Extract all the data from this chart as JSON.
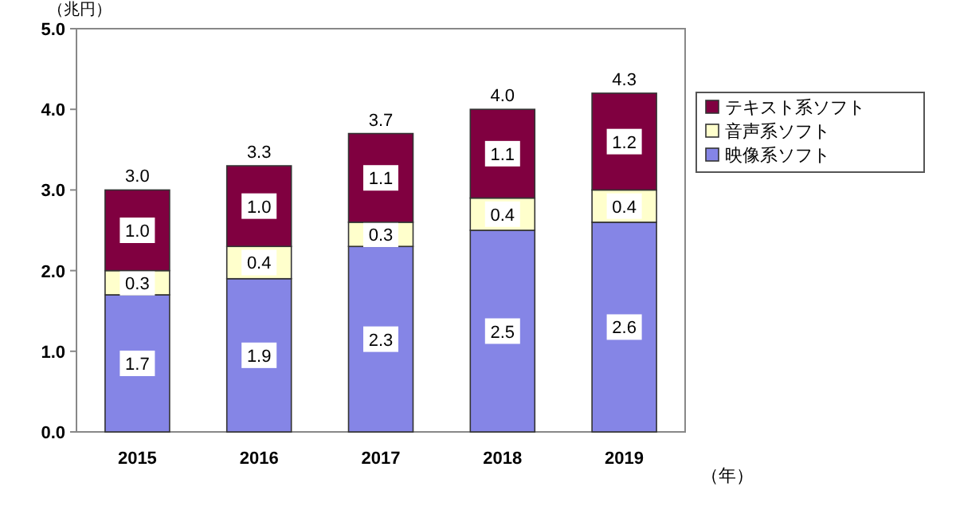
{
  "chart_data": {
    "type": "bar",
    "stacked": true,
    "ylabel": "（兆円）",
    "xlabel": "（年）",
    "categories": [
      "2015",
      "2016",
      "2017",
      "2018",
      "2019"
    ],
    "series": [
      {
        "name": "映像系ソフト",
        "color": "#8585e6",
        "values": [
          1.7,
          1.9,
          2.3,
          2.5,
          2.6
        ],
        "value_labels": [
          "1.7",
          "1.9",
          "2.3",
          "2.5",
          "2.6"
        ]
      },
      {
        "name": "音声系ソフト",
        "color": "#ffffcc",
        "values": [
          0.3,
          0.4,
          0.3,
          0.4,
          0.4
        ],
        "value_labels": [
          "0.3",
          "0.4",
          "0.3",
          "0.4",
          "0.4"
        ]
      },
      {
        "name": "テキスト系ソフト",
        "color": "#800040",
        "values": [
          1.0,
          1.0,
          1.1,
          1.1,
          1.2
        ],
        "value_labels": [
          "1.0",
          "1.0",
          "1.1",
          "1.1",
          "1.2"
        ]
      }
    ],
    "totals": [
      "3.0",
      "3.3",
      "3.7",
      "4.0",
      "4.3"
    ],
    "ylim": [
      0,
      5
    ],
    "yticks": [
      {
        "value": 0,
        "label": "0.0"
      },
      {
        "value": 1,
        "label": "1.0"
      },
      {
        "value": 2,
        "label": "2.0"
      },
      {
        "value": 3,
        "label": "3.0"
      },
      {
        "value": 4,
        "label": "4.0"
      },
      {
        "value": 5,
        "label": "5.0"
      }
    ],
    "legend": "top right"
  }
}
